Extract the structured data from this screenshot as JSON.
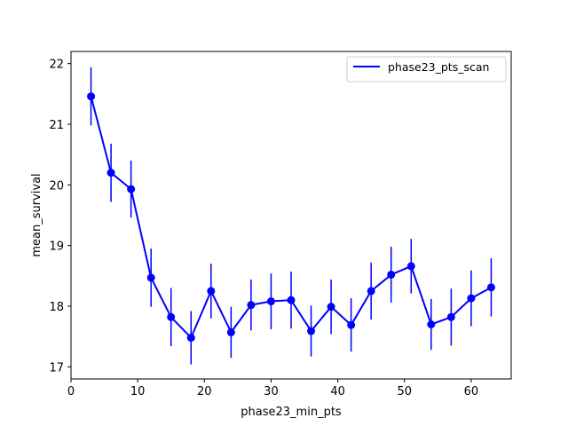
{
  "chart_data": {
    "type": "line",
    "title": "",
    "xlabel": "phase23_min_pts",
    "ylabel": "mean_survival",
    "xlim": [
      0,
      66
    ],
    "ylim": [
      16.8,
      22.2
    ],
    "xticks": [
      0,
      10,
      20,
      30,
      40,
      50,
      60
    ],
    "yticks": [
      17,
      18,
      19,
      20,
      21,
      22
    ],
    "grid": false,
    "legend_position": "top-right",
    "color": "#0000ff",
    "series": [
      {
        "name": "phase23_pts_scan",
        "x": [
          3,
          6,
          9,
          12,
          15,
          18,
          21,
          24,
          27,
          30,
          33,
          36,
          39,
          42,
          45,
          48,
          51,
          54,
          57,
          60,
          63
        ],
        "y": [
          21.46,
          20.2,
          19.93,
          18.47,
          17.82,
          17.48,
          18.25,
          17.57,
          18.02,
          18.08,
          18.1,
          17.59,
          17.99,
          17.69,
          18.25,
          18.52,
          18.66,
          17.7,
          17.82,
          18.13,
          18.31
        ],
        "yerr": [
          0.48,
          0.48,
          0.47,
          0.48,
          0.48,
          0.44,
          0.45,
          0.42,
          0.42,
          0.46,
          0.47,
          0.42,
          0.45,
          0.44,
          0.47,
          0.46,
          0.45,
          0.42,
          0.47,
          0.46,
          0.48
        ]
      }
    ]
  }
}
